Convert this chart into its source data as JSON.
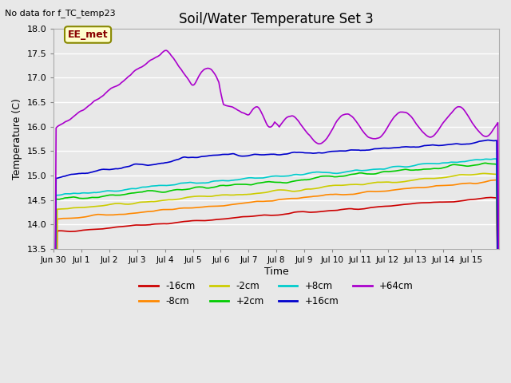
{
  "title": "Soil/Water Temperature Set 3",
  "subtitle": "No data for f_TC_temp23",
  "xlabel": "Time",
  "ylabel": "Temperature (C)",
  "ylim": [
    13.5,
    18.0
  ],
  "plot_bg_color": "#e8e8e8",
  "annotation": "EE_met",
  "x_ticks": [
    "Jun 30",
    "Jul 1",
    "Jul 2",
    "Jul 3",
    "Jul 4",
    "Jul 5",
    "Jul 6",
    "Jul 7",
    "Jul 8",
    "Jul 9",
    "Jul 10",
    "Jul 11",
    "Jul 12",
    "Jul 13",
    "Jul 14",
    "Jul 15"
  ],
  "yticks": [
    13.5,
    14.0,
    14.5,
    15.0,
    15.5,
    16.0,
    16.5,
    17.0,
    17.5,
    18.0
  ],
  "series": [
    {
      "label": "-16cm",
      "color": "#cc0000"
    },
    {
      "label": "-8cm",
      "color": "#ff8800"
    },
    {
      "label": "-2cm",
      "color": "#cccc00"
    },
    {
      "label": "+2cm",
      "color": "#00cc00"
    },
    {
      "label": "+8cm",
      "color": "#00cccc"
    },
    {
      "label": "+16cm",
      "color": "#0000cc"
    },
    {
      "label": "+64cm",
      "color": "#aa00cc"
    }
  ]
}
